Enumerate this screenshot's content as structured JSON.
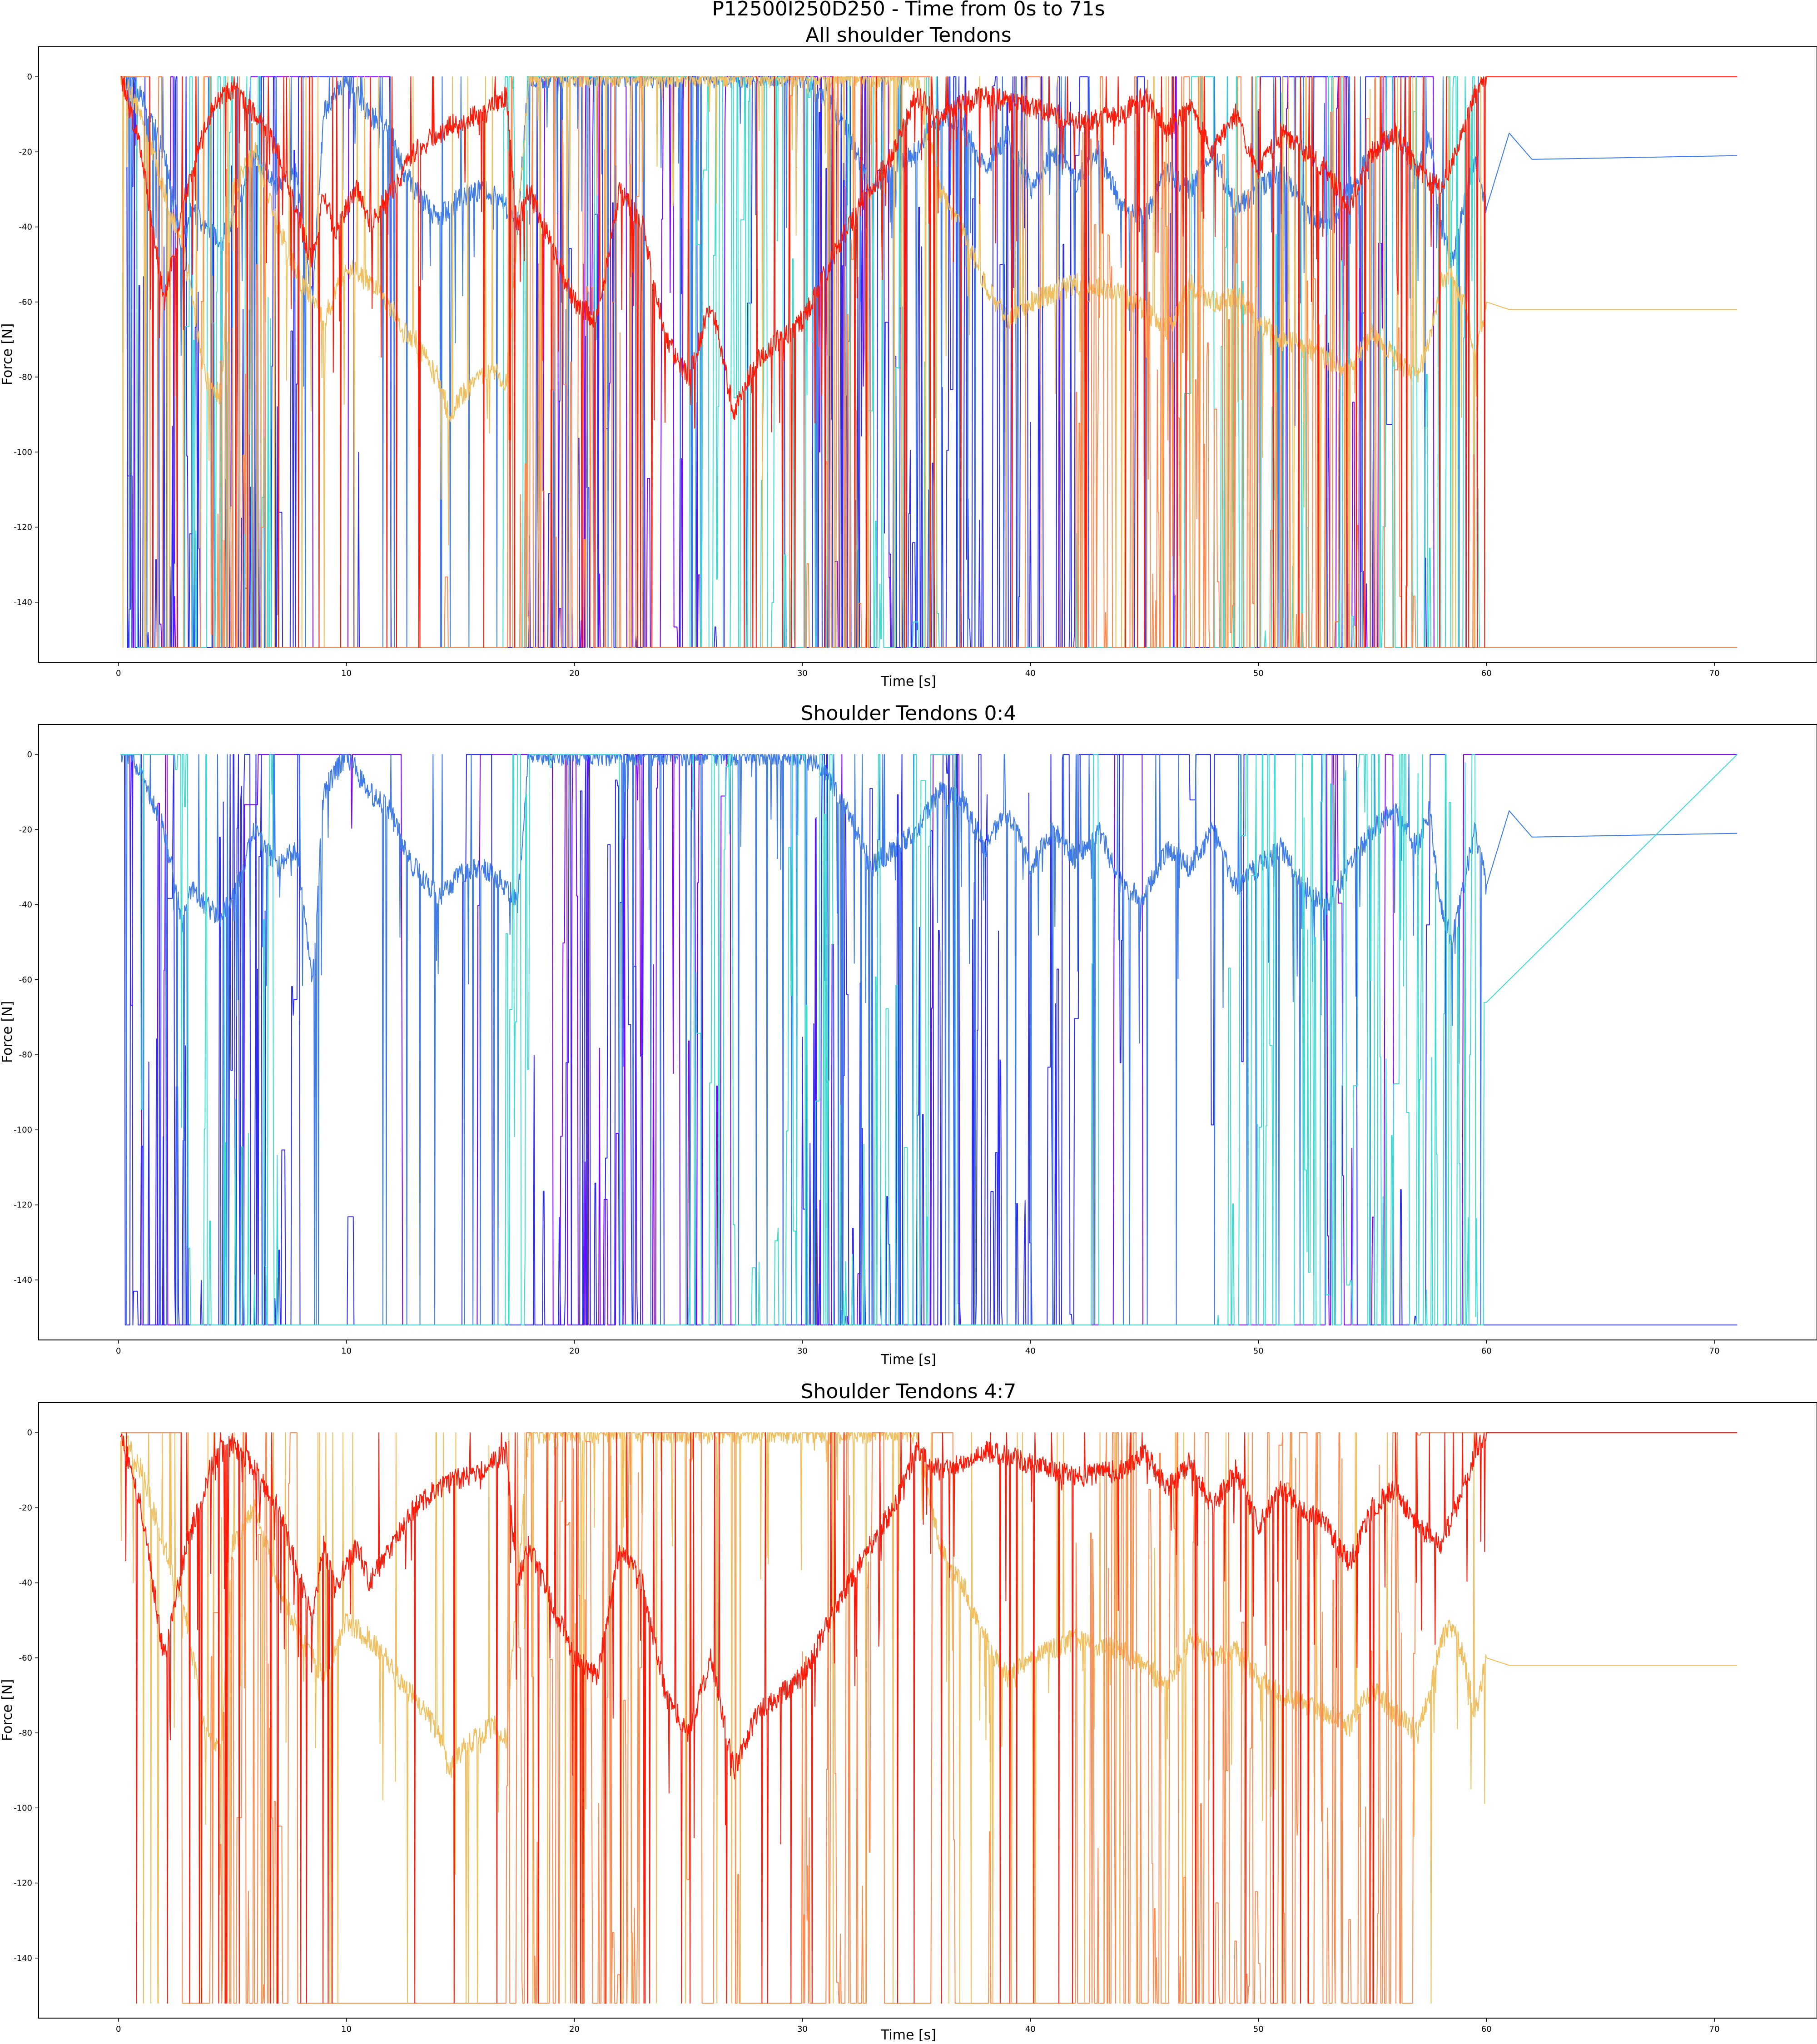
{
  "figure": {
    "suptitle": "P12500I250D250 - Time from 0s to 71s"
  },
  "chart_data": [
    {
      "type": "line",
      "title": "All shoulder Tendons",
      "xlabel": "Time [s]",
      "ylabel": "Force [N]",
      "xlim": [
        -3.5,
        74.5
      ],
      "ylim": [
        -156,
        8
      ],
      "xticks": [
        0,
        10,
        20,
        30,
        40,
        50,
        60,
        70
      ],
      "yticks": [
        0,
        -20,
        -40,
        -60,
        -80,
        -100,
        -120,
        -140
      ],
      "grid": false,
      "legend": "none",
      "series": [
        {
          "color": "#7f00ff",
          "role": "spiky",
          "seed": 11,
          "start": 0.1,
          "end": 60,
          "clamp_low": -152,
          "density": 0.15,
          "bursts": [
            [
              0.3,
              2.5
            ],
            [
              19,
              27
            ],
            [
              30.5,
              33
            ],
            [
              41,
              41.5
            ],
            [
              46,
              46.5
            ],
            [
              53,
              56
            ]
          ]
        },
        {
          "color": "#2c2cf5",
          "role": "spiky",
          "seed": 12,
          "start": 0.1,
          "end": 60,
          "clamp_low": -152,
          "density": 0.35,
          "bursts": [
            [
              0.3,
              8
            ],
            [
              18,
              23
            ],
            [
              30,
              42
            ]
          ]
        },
        {
          "color": "#3f7ce8",
          "role": "smooth",
          "seed": 13,
          "clamp_low": -152,
          "x": [
            0.1,
            0.5,
            1,
            2,
            2.8,
            3.2,
            3.8,
            4.5,
            5,
            6,
            7,
            7.8,
            8.5,
            9,
            9.5,
            10,
            11,
            12,
            12.5,
            13,
            14,
            15,
            16,
            16.5,
            17,
            17.5,
            18,
            20,
            25,
            30,
            31,
            32,
            33,
            34,
            35,
            36,
            37,
            38,
            39,
            40,
            41,
            42,
            43,
            44,
            45,
            46,
            47,
            48,
            49,
            50,
            51,
            52,
            53,
            54,
            55,
            56,
            57,
            57.5,
            58,
            58.5,
            59,
            59.5,
            60,
            61,
            62,
            71
          ],
          "y": [
            0,
            0,
            -5,
            -20,
            -45,
            -35,
            -40,
            -43,
            -38,
            -20,
            -30,
            -25,
            -60,
            -10,
            -5,
            0,
            -10,
            -15,
            -25,
            -30,
            -38,
            -32,
            -30,
            -32,
            -35,
            -40,
            0,
            0,
            0,
            0,
            -5,
            -15,
            -30,
            -25,
            -20,
            -10,
            -12,
            -25,
            -15,
            -30,
            -20,
            -28,
            -20,
            -35,
            -38,
            -25,
            -30,
            -20,
            -35,
            -30,
            -25,
            -35,
            -40,
            -30,
            -20,
            -15,
            -25,
            -15,
            -40,
            -50,
            -35,
            -20,
            -35,
            -15,
            -22,
            -21
          ]
        },
        {
          "color": "#3ddcd0",
          "role": "spiky",
          "seed": 14,
          "start": 0.1,
          "end": 60,
          "clamp_low": -152,
          "density": 0.3,
          "bursts": [
            [
              2.5,
              7
            ],
            [
              16.5,
              18
            ],
            [
              25,
              36
            ],
            [
              48,
              60
            ]
          ]
        },
        {
          "color": "#f0c060",
          "role": "smooth",
          "seed": 15,
          "clamp_low": -152,
          "x": [
            0.1,
            1,
            2,
            3,
            3.8,
            4.5,
            5,
            6,
            7,
            8,
            8.5,
            9,
            9.5,
            10,
            11,
            12,
            12.5,
            13,
            13.5,
            14,
            14.5,
            15,
            16,
            16.5,
            17,
            18,
            20,
            25,
            30,
            35,
            36,
            37,
            38,
            39,
            40,
            42,
            44,
            45,
            46,
            47,
            48,
            49,
            50,
            51,
            52,
            53,
            54,
            55,
            56,
            57,
            57.5,
            58,
            58.5,
            59,
            59.5,
            60,
            61,
            71
          ],
          "y": [
            0,
            -10,
            -30,
            -50,
            -80,
            -85,
            -30,
            -20,
            -40,
            -55,
            -60,
            -65,
            -58,
            -50,
            -55,
            -62,
            -68,
            -70,
            -75,
            -80,
            -90,
            -85,
            -80,
            -78,
            -82,
            0,
            0,
            0,
            0,
            0,
            -30,
            -40,
            -55,
            -65,
            -60,
            -55,
            -58,
            -62,
            -68,
            -55,
            -60,
            -58,
            -65,
            -70,
            -72,
            -75,
            -78,
            -68,
            -75,
            -80,
            -70,
            -55,
            -52,
            -60,
            -75,
            -60,
            -62,
            -62
          ]
        },
        {
          "color": "#ff8a50",
          "role": "spiky",
          "seed": 16,
          "start": 0.1,
          "end": 60,
          "clamp_low": -152,
          "density": 0.45,
          "bursts": [
            [
              4,
              7
            ],
            [
              17,
              23
            ],
            [
              30,
              33
            ],
            [
              42,
              57
            ]
          ]
        },
        {
          "color": "#ff1a0a",
          "role": "smooth",
          "seed": 17,
          "clamp_low": -152,
          "x": [
            0.1,
            1,
            2,
            3,
            4,
            4.5,
            5,
            6,
            7,
            8,
            8.5,
            9,
            9.5,
            10,
            10.5,
            11,
            11.5,
            12,
            12.5,
            13,
            14,
            15,
            16,
            17,
            17.5,
            18,
            19,
            20,
            21,
            22,
            23,
            24,
            25,
            26,
            27,
            28,
            30,
            32,
            34,
            35,
            36,
            38,
            40,
            42,
            44,
            45,
            46,
            47,
            48,
            49,
            50,
            51,
            52,
            53,
            54,
            55,
            56,
            57,
            58,
            59,
            59.5,
            60,
            71
          ],
          "y": [
            0,
            -20,
            -60,
            -30,
            -10,
            -5,
            -3,
            -10,
            -20,
            -40,
            -50,
            -30,
            -42,
            -35,
            -30,
            -40,
            -35,
            -30,
            -25,
            -20,
            -15,
            -12,
            -10,
            -5,
            -40,
            -30,
            -45,
            -60,
            -65,
            -30,
            -40,
            -70,
            -80,
            -60,
            -90,
            -75,
            -65,
            -40,
            -20,
            -5,
            -10,
            -5,
            -8,
            -12,
            -10,
            -5,
            -15,
            -8,
            -20,
            -10,
            -25,
            -15,
            -20,
            -25,
            -35,
            -20,
            -15,
            -25,
            -30,
            -15,
            -5,
            0,
            0
          ]
        }
      ]
    },
    {
      "type": "line",
      "title": "Shoulder Tendons 0:4",
      "xlabel": "Time [s]",
      "ylabel": "Force [N]",
      "xlim": [
        -3.5,
        74.5
      ],
      "ylim": [
        -156,
        8
      ],
      "xticks": [
        0,
        10,
        20,
        30,
        40,
        50,
        60,
        70
      ],
      "yticks": [
        0,
        -20,
        -40,
        -60,
        -80,
        -100,
        -120,
        -140
      ],
      "grid": false,
      "legend": "none",
      "series": [
        {
          "color": "#7f00ff",
          "role": "spiky",
          "seed": 21,
          "start": 0.1,
          "end": 60,
          "clamp_low": -152,
          "density": 0.15,
          "bursts": [
            [
              0.3,
              2.5
            ],
            [
              19,
              27
            ],
            [
              30.5,
              33
            ],
            [
              41,
              41.5
            ],
            [
              46,
              46.5
            ],
            [
              53,
              56
            ]
          ]
        },
        {
          "color": "#2c2cf5",
          "role": "spiky",
          "seed": 22,
          "start": 0.1,
          "end": 60,
          "clamp_low": -152,
          "density": 0.35,
          "bursts": [
            [
              0.3,
              8
            ],
            [
              18,
              23
            ],
            [
              30,
              42
            ]
          ]
        },
        {
          "color": "#3f7ce8",
          "role": "smooth",
          "seed": 23,
          "clamp_low": -152,
          "x": [
            0.1,
            0.5,
            1,
            2,
            2.8,
            3.2,
            3.8,
            4.5,
            5,
            6,
            7,
            7.8,
            8.5,
            9,
            9.5,
            10,
            11,
            12,
            12.5,
            13,
            14,
            15,
            16,
            16.5,
            17,
            17.5,
            18,
            20,
            25,
            30,
            31,
            32,
            33,
            34,
            35,
            36,
            37,
            38,
            39,
            40,
            41,
            42,
            43,
            44,
            45,
            46,
            47,
            48,
            49,
            50,
            51,
            52,
            53,
            54,
            55,
            56,
            57,
            57.5,
            58,
            58.5,
            59,
            59.5,
            60,
            61,
            62,
            71
          ],
          "y": [
            0,
            0,
            -5,
            -20,
            -45,
            -35,
            -40,
            -43,
            -38,
            -20,
            -30,
            -25,
            -60,
            -10,
            -5,
            0,
            -10,
            -15,
            -25,
            -30,
            -38,
            -32,
            -30,
            -32,
            -35,
            -40,
            0,
            0,
            0,
            0,
            -5,
            -15,
            -30,
            -25,
            -20,
            -10,
            -12,
            -25,
            -15,
            -30,
            -20,
            -28,
            -20,
            -35,
            -38,
            -25,
            -30,
            -20,
            -35,
            -30,
            -25,
            -35,
            -40,
            -30,
            -20,
            -15,
            -25,
            -15,
            -40,
            -50,
            -35,
            -20,
            -35,
            -15,
            -22,
            -21
          ]
        },
        {
          "color": "#3ddcd0",
          "role": "spiky",
          "seed": 24,
          "start": 0.1,
          "end": 60,
          "clamp_low": -152,
          "density": 0.3,
          "bursts": [
            [
              2.5,
              7
            ],
            [
              16.5,
              18
            ],
            [
              25,
              36
            ],
            [
              48,
              60
            ]
          ]
        }
      ]
    },
    {
      "type": "line",
      "title": "Shoulder Tendons 4:7",
      "xlabel": "Time [s]",
      "ylabel": "Force [N]",
      "xlim": [
        -3.5,
        74.5
      ],
      "ylim": [
        -156,
        8
      ],
      "xticks": [
        0,
        10,
        20,
        30,
        40,
        50,
        60,
        70
      ],
      "yticks": [
        0,
        -20,
        -40,
        -60,
        -80,
        -100,
        -120,
        -140
      ],
      "grid": false,
      "legend": "none",
      "series": [
        {
          "color": "#f0c060",
          "role": "smooth",
          "seed": 31,
          "clamp_low": -152,
          "x": [
            0.1,
            1,
            2,
            3,
            3.8,
            4.5,
            5,
            6,
            7,
            8,
            8.5,
            9,
            9.5,
            10,
            11,
            12,
            12.5,
            13,
            13.5,
            14,
            14.5,
            15,
            16,
            16.5,
            17,
            18,
            20,
            25,
            30,
            35,
            36,
            37,
            38,
            39,
            40,
            42,
            44,
            45,
            46,
            47,
            48,
            49,
            50,
            51,
            52,
            53,
            54,
            55,
            56,
            57,
            57.5,
            58,
            58.5,
            59,
            59.5,
            60,
            61,
            71
          ],
          "y": [
            0,
            -10,
            -30,
            -50,
            -80,
            -85,
            -30,
            -20,
            -40,
            -55,
            -60,
            -65,
            -58,
            -50,
            -55,
            -62,
            -68,
            -70,
            -75,
            -80,
            -90,
            -85,
            -80,
            -78,
            -82,
            0,
            0,
            0,
            0,
            0,
            -30,
            -40,
            -55,
            -65,
            -60,
            -55,
            -58,
            -62,
            -68,
            -55,
            -60,
            -58,
            -65,
            -70,
            -72,
            -75,
            -78,
            -68,
            -75,
            -80,
            -70,
            -55,
            -52,
            -60,
            -75,
            -60,
            -62,
            -62
          ]
        },
        {
          "color": "#ff8a50",
          "role": "spiky",
          "seed": 32,
          "start": 0.1,
          "end": 60,
          "clamp_low": -152,
          "density": 0.45,
          "bursts": [
            [
              4,
              7
            ],
            [
              17,
              23
            ],
            [
              30,
              33
            ],
            [
              42,
              57
            ]
          ]
        },
        {
          "color": "#ff1a0a",
          "role": "smooth",
          "seed": 33,
          "clamp_low": -152,
          "x": [
            0.1,
            1,
            2,
            3,
            4,
            4.5,
            5,
            6,
            7,
            8,
            8.5,
            9,
            9.5,
            10,
            10.5,
            11,
            11.5,
            12,
            12.5,
            13,
            14,
            15,
            16,
            17,
            17.5,
            18,
            19,
            20,
            21,
            22,
            23,
            24,
            25,
            26,
            27,
            28,
            30,
            32,
            34,
            35,
            36,
            38,
            40,
            42,
            44,
            45,
            46,
            47,
            48,
            49,
            50,
            51,
            52,
            53,
            54,
            55,
            56,
            57,
            58,
            59,
            59.5,
            60,
            71
          ],
          "y": [
            0,
            -20,
            -60,
            -30,
            -10,
            -5,
            -3,
            -10,
            -20,
            -40,
            -50,
            -30,
            -42,
            -35,
            -30,
            -40,
            -35,
            -30,
            -25,
            -20,
            -15,
            -12,
            -10,
            -5,
            -40,
            -30,
            -45,
            -60,
            -65,
            -30,
            -40,
            -70,
            -80,
            -60,
            -90,
            -75,
            -65,
            -40,
            -20,
            -5,
            -10,
            -5,
            -8,
            -12,
            -10,
            -5,
            -15,
            -8,
            -20,
            -10,
            -25,
            -15,
            -20,
            -25,
            -35,
            -20,
            -15,
            -25,
            -30,
            -15,
            -5,
            0,
            0
          ]
        }
      ]
    }
  ]
}
